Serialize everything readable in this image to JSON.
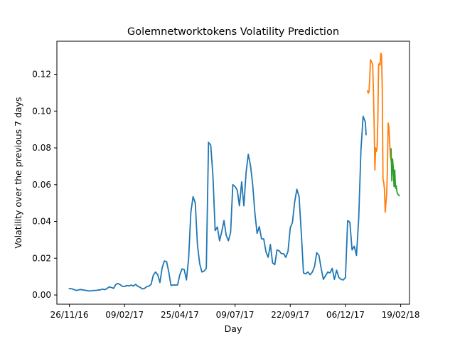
{
  "chart_data": {
    "type": "line",
    "title": "Golemnetworktokens Volatility Prediction",
    "xlabel": "Day",
    "ylabel": "Volatility over the previous 7 days",
    "x_tick_labels": [
      "26/11/16",
      "09/02/17",
      "25/04/17",
      "09/07/17",
      "22/09/17",
      "06/12/17",
      "19/02/18"
    ],
    "y_tick_labels": [
      "0.00",
      "0.02",
      "0.04",
      "0.06",
      "0.08",
      "0.10",
      "0.12"
    ],
    "x_axis": {
      "unit": "day",
      "range": [
        "2016-11-09",
        "2018-03-03"
      ],
      "ticks": [
        "2016-11-26",
        "2017-02-09",
        "2017-04-25",
        "2017-07-09",
        "2017-09-22",
        "2017-12-06",
        "2018-02-19"
      ]
    },
    "ylim": [
      -0.005,
      0.138
    ],
    "yticks": [
      0.0,
      0.02,
      0.04,
      0.06,
      0.08,
      0.1,
      0.12
    ],
    "grid": false,
    "legend": "none",
    "series": [
      {
        "color": "#1f77b4",
        "points": [
          [
            "2016-11-26",
            0.0035
          ],
          [
            "2016-11-29",
            0.0034
          ],
          [
            "2016-12-02",
            0.003
          ],
          [
            "2016-12-05",
            0.0025
          ],
          [
            "2016-12-08",
            0.0027
          ],
          [
            "2016-12-11",
            0.003
          ],
          [
            "2016-12-14",
            0.0028
          ],
          [
            "2016-12-17",
            0.0026
          ],
          [
            "2016-12-20",
            0.0024
          ],
          [
            "2016-12-23",
            0.0022
          ],
          [
            "2016-12-26",
            0.0023
          ],
          [
            "2016-12-29",
            0.0025
          ],
          [
            "2017-01-01",
            0.0025
          ],
          [
            "2017-01-04",
            0.0027
          ],
          [
            "2017-01-07",
            0.0028
          ],
          [
            "2017-01-10",
            0.0032
          ],
          [
            "2017-01-13",
            0.0029
          ],
          [
            "2017-01-16",
            0.0035
          ],
          [
            "2017-01-19",
            0.0044
          ],
          [
            "2017-01-22",
            0.0041
          ],
          [
            "2017-01-25",
            0.0036
          ],
          [
            "2017-01-28",
            0.0057
          ],
          [
            "2017-01-31",
            0.0063
          ],
          [
            "2017-02-03",
            0.0056
          ],
          [
            "2017-02-06",
            0.0047
          ],
          [
            "2017-02-09",
            0.0046
          ],
          [
            "2017-02-12",
            0.0052
          ],
          [
            "2017-02-15",
            0.0049
          ],
          [
            "2017-02-18",
            0.0054
          ],
          [
            "2017-02-21",
            0.0049
          ],
          [
            "2017-02-24",
            0.0058
          ],
          [
            "2017-02-27",
            0.0047
          ],
          [
            "2017-03-02",
            0.0042
          ],
          [
            "2017-03-05",
            0.0033
          ],
          [
            "2017-03-08",
            0.0036
          ],
          [
            "2017-03-11",
            0.0045
          ],
          [
            "2017-03-14",
            0.0048
          ],
          [
            "2017-03-17",
            0.0058
          ],
          [
            "2017-03-20",
            0.0108
          ],
          [
            "2017-03-23",
            0.0125
          ],
          [
            "2017-03-26",
            0.011
          ],
          [
            "2017-03-29",
            0.0068
          ],
          [
            "2017-04-01",
            0.0148
          ],
          [
            "2017-04-04",
            0.0185
          ],
          [
            "2017-04-07",
            0.0182
          ],
          [
            "2017-04-10",
            0.0125
          ],
          [
            "2017-04-13",
            0.0052
          ],
          [
            "2017-04-16",
            0.0055
          ],
          [
            "2017-04-19",
            0.0054
          ],
          [
            "2017-04-22",
            0.0055
          ],
          [
            "2017-04-25",
            0.011
          ],
          [
            "2017-04-28",
            0.0142
          ],
          [
            "2017-05-01",
            0.0138
          ],
          [
            "2017-05-04",
            0.0082
          ],
          [
            "2017-05-07",
            0.02
          ],
          [
            "2017-05-10",
            0.045
          ],
          [
            "2017-05-13",
            0.0535
          ],
          [
            "2017-05-16",
            0.05
          ],
          [
            "2017-05-19",
            0.027
          ],
          [
            "2017-05-22",
            0.017
          ],
          [
            "2017-05-25",
            0.0125
          ],
          [
            "2017-05-28",
            0.013
          ],
          [
            "2017-05-31",
            0.0145
          ],
          [
            "2017-06-03",
            0.083
          ],
          [
            "2017-06-06",
            0.0815
          ],
          [
            "2017-06-09",
            0.0648
          ],
          [
            "2017-06-12",
            0.035
          ],
          [
            "2017-06-15",
            0.037
          ],
          [
            "2017-06-18",
            0.0295
          ],
          [
            "2017-06-21",
            0.0345
          ],
          [
            "2017-06-24",
            0.0405
          ],
          [
            "2017-06-27",
            0.0325
          ],
          [
            "2017-06-30",
            0.0295
          ],
          [
            "2017-07-03",
            0.034
          ],
          [
            "2017-07-06",
            0.06
          ],
          [
            "2017-07-09",
            0.059
          ],
          [
            "2017-07-12",
            0.057
          ],
          [
            "2017-07-15",
            0.0485
          ],
          [
            "2017-07-18",
            0.0615
          ],
          [
            "2017-07-21",
            0.0485
          ],
          [
            "2017-07-24",
            0.0665
          ],
          [
            "2017-07-27",
            0.0765
          ],
          [
            "2017-07-30",
            0.0705
          ],
          [
            "2017-08-02",
            0.06
          ],
          [
            "2017-08-05",
            0.0445
          ],
          [
            "2017-08-08",
            0.0335
          ],
          [
            "2017-08-11",
            0.0372
          ],
          [
            "2017-08-14",
            0.0305
          ],
          [
            "2017-08-17",
            0.0305
          ],
          [
            "2017-08-20",
            0.0235
          ],
          [
            "2017-08-23",
            0.0205
          ],
          [
            "2017-08-26",
            0.0275
          ],
          [
            "2017-08-29",
            0.0175
          ],
          [
            "2017-09-01",
            0.0165
          ],
          [
            "2017-09-04",
            0.0245
          ],
          [
            "2017-09-07",
            0.024
          ],
          [
            "2017-09-10",
            0.0225
          ],
          [
            "2017-09-13",
            0.0225
          ],
          [
            "2017-09-16",
            0.0205
          ],
          [
            "2017-09-19",
            0.0238
          ],
          [
            "2017-09-22",
            0.0365
          ],
          [
            "2017-09-25",
            0.0395
          ],
          [
            "2017-09-28",
            0.0505
          ],
          [
            "2017-10-01",
            0.0575
          ],
          [
            "2017-10-04",
            0.0535
          ],
          [
            "2017-10-07",
            0.034
          ],
          [
            "2017-10-10",
            0.012
          ],
          [
            "2017-10-13",
            0.0115
          ],
          [
            "2017-10-16",
            0.0125
          ],
          [
            "2017-10-19",
            0.011
          ],
          [
            "2017-10-22",
            0.0125
          ],
          [
            "2017-10-25",
            0.0155
          ],
          [
            "2017-10-28",
            0.023
          ],
          [
            "2017-10-31",
            0.0215
          ],
          [
            "2017-11-03",
            0.0145
          ],
          [
            "2017-11-06",
            0.0085
          ],
          [
            "2017-11-09",
            0.0105
          ],
          [
            "2017-11-12",
            0.0125
          ],
          [
            "2017-11-15",
            0.012
          ],
          [
            "2017-11-18",
            0.0145
          ],
          [
            "2017-11-21",
            0.0085
          ],
          [
            "2017-11-24",
            0.0135
          ],
          [
            "2017-11-27",
            0.0095
          ],
          [
            "2017-11-30",
            0.0085
          ],
          [
            "2017-12-03",
            0.0082
          ],
          [
            "2017-12-06",
            0.0095
          ],
          [
            "2017-12-09",
            0.0405
          ],
          [
            "2017-12-12",
            0.0395
          ],
          [
            "2017-12-15",
            0.0245
          ],
          [
            "2017-12-18",
            0.0265
          ],
          [
            "2017-12-21",
            0.0215
          ],
          [
            "2017-12-24",
            0.0415
          ],
          [
            "2017-12-27",
            0.0785
          ],
          [
            "2017-12-30",
            0.0972
          ],
          [
            "2018-01-02",
            0.094
          ],
          [
            "2018-01-03",
            0.0872
          ]
        ]
      },
      {
        "color": "#ff7f0e",
        "points": [
          [
            "2018-01-05",
            0.111
          ],
          [
            "2018-01-06",
            0.1098
          ],
          [
            "2018-01-07",
            0.1105
          ],
          [
            "2018-01-08",
            0.118
          ],
          [
            "2018-01-09",
            0.128
          ],
          [
            "2018-01-10",
            0.127
          ],
          [
            "2018-01-11",
            0.1265
          ],
          [
            "2018-01-12",
            0.125
          ],
          [
            "2018-01-13",
            0.111
          ],
          [
            "2018-01-14",
            0.092
          ],
          [
            "2018-01-15",
            0.068
          ],
          [
            "2018-01-16",
            0.08
          ],
          [
            "2018-01-17",
            0.078
          ],
          [
            "2018-01-18",
            0.08
          ],
          [
            "2018-01-19",
            0.095
          ],
          [
            "2018-01-20",
            0.125
          ],
          [
            "2018-01-21",
            0.126
          ],
          [
            "2018-01-22",
            0.125
          ],
          [
            "2018-01-23",
            0.1315
          ],
          [
            "2018-01-24",
            0.1305
          ],
          [
            "2018-01-25",
            0.1118
          ],
          [
            "2018-01-26",
            0.063
          ],
          [
            "2018-01-27",
            0.0612
          ],
          [
            "2018-01-28",
            0.0575
          ],
          [
            "2018-01-29",
            0.045
          ],
          [
            "2018-01-30",
            0.05
          ],
          [
            "2018-01-31",
            0.055
          ],
          [
            "2018-02-01",
            0.068
          ],
          [
            "2018-02-02",
            0.0935
          ],
          [
            "2018-02-03",
            0.0915
          ],
          [
            "2018-02-04",
            0.084
          ],
          [
            "2018-02-05",
            0.075
          ],
          [
            "2018-02-06",
            0.073
          ]
        ]
      },
      {
        "color": "#2ca02c",
        "points": [
          [
            "2018-02-06",
            0.0795
          ],
          [
            "2018-02-07",
            0.062
          ],
          [
            "2018-02-08",
            0.074
          ],
          [
            "2018-02-09",
            0.069
          ],
          [
            "2018-02-10",
            0.059
          ],
          [
            "2018-02-11",
            0.068
          ],
          [
            "2018-02-12",
            0.058
          ],
          [
            "2018-02-13",
            0.0595
          ],
          [
            "2018-02-14",
            0.056
          ],
          [
            "2018-02-15",
            0.055
          ],
          [
            "2018-02-16",
            0.0545
          ],
          [
            "2018-02-17",
            0.054
          ]
        ]
      }
    ]
  }
}
